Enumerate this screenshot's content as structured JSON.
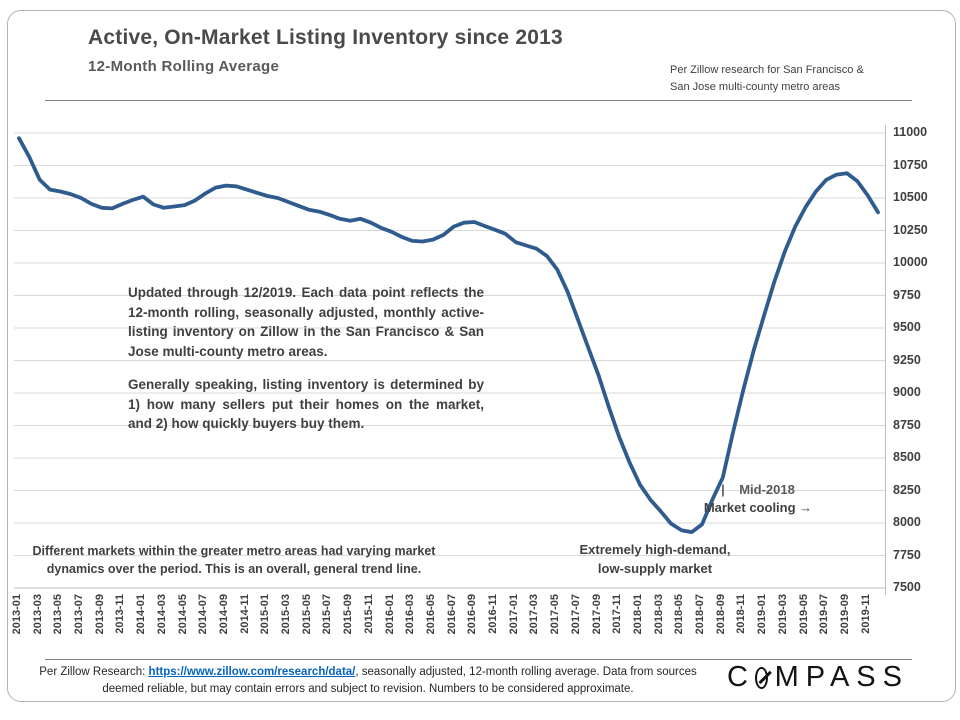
{
  "slide": {
    "title": "Active, On-Market Listing Inventory since 2013",
    "subtitle": "12-Month Rolling Average",
    "source_note_line1": "Per Zillow research for San Francisco &",
    "source_note_line2": "San Jose multi-county metro areas"
  },
  "annotations": {
    "center_paragraph1": "Updated through 12/2019. Each data point reflects the 12-month rolling, seasonally adjusted, monthly active-listing inventory on Zillow in the San Francisco & San Jose multi-county metro areas.",
    "center_paragraph2": "Generally speaking, listing inventory is determined by 1) how many sellers put their homes on the market, and 2) how quickly buyers buy them.",
    "bottom_left": "Different markets within the greater metro areas had varying market dynamics over the period. This is an overall, general trend line.",
    "high_demand_line1": "Extremely high-demand,",
    "high_demand_line2": "low-supply market",
    "mid2018_line1": "|    Mid-2018",
    "mid2018_line2": "Market cooling →"
  },
  "footer": {
    "prefix": "Per Zillow Research:  ",
    "link": "https://www.zillow.com/research/data/",
    "suffix": ",  seasonally adjusted, 12-month rolling average. Data from sources deemed reliable, but may contain errors and subject to revision. Numbers to be considered approximate.",
    "brand_c": "C",
    "brand_rest": "MPASS"
  },
  "colors": {
    "line": "#2F5B8E",
    "gridline": "#D9D9D9",
    "axis": "#BFBFBF",
    "link_blue": "#0563C1",
    "text_gray": "#404040"
  },
  "chart_data": {
    "type": "line",
    "title": "Active, On-Market Listing Inventory since 2013",
    "subtitle": "12-Month Rolling Average",
    "xlabel": "",
    "ylabel": "",
    "ylim": [
      7500,
      11000
    ],
    "y_ticks": [
      7500,
      7750,
      8000,
      8250,
      8500,
      8750,
      9000,
      9250,
      9500,
      9750,
      10000,
      10250,
      10500,
      10750,
      11000
    ],
    "grid": "horizontal",
    "legend": "none",
    "x": [
      "2013-01",
      "2013-02",
      "2013-03",
      "2013-04",
      "2013-05",
      "2013-06",
      "2013-07",
      "2013-08",
      "2013-09",
      "2013-10",
      "2013-11",
      "2013-12",
      "2014-01",
      "2014-02",
      "2014-03",
      "2014-04",
      "2014-05",
      "2014-06",
      "2014-07",
      "2014-08",
      "2014-09",
      "2014-10",
      "2014-11",
      "2014-12",
      "2015-01",
      "2015-02",
      "2015-03",
      "2015-04",
      "2015-05",
      "2015-06",
      "2015-07",
      "2015-08",
      "2015-09",
      "2015-10",
      "2015-11",
      "2015-12",
      "2016-01",
      "2016-02",
      "2016-03",
      "2016-04",
      "2016-05",
      "2016-06",
      "2016-07",
      "2016-08",
      "2016-09",
      "2016-10",
      "2016-11",
      "2016-12",
      "2017-01",
      "2017-02",
      "2017-03",
      "2017-04",
      "2017-05",
      "2017-06",
      "2017-07",
      "2017-08",
      "2017-09",
      "2017-10",
      "2017-11",
      "2017-12",
      "2018-01",
      "2018-02",
      "2018-03",
      "2018-04",
      "2018-05",
      "2018-06",
      "2018-07",
      "2018-08",
      "2018-09",
      "2018-10",
      "2018-11",
      "2018-12",
      "2019-01",
      "2019-02",
      "2019-03",
      "2019-04",
      "2019-05",
      "2019-06",
      "2019-07",
      "2019-08",
      "2019-09",
      "2019-10",
      "2019-11",
      "2019-12"
    ],
    "values": [
      10960,
      10815,
      10640,
      10565,
      10550,
      10530,
      10500,
      10455,
      10425,
      10420,
      10455,
      10485,
      10510,
      10450,
      10425,
      10435,
      10445,
      10480,
      10535,
      10580,
      10595,
      10590,
      10565,
      10540,
      10515,
      10500,
      10470,
      10440,
      10410,
      10395,
      10370,
      10340,
      10325,
      10340,
      10310,
      10270,
      10240,
      10200,
      10170,
      10165,
      10180,
      10215,
      10280,
      10310,
      10315,
      10285,
      10255,
      10225,
      10160,
      10135,
      10110,
      10055,
      9950,
      9780,
      9565,
      9350,
      9135,
      8890,
      8660,
      8465,
      8295,
      8180,
      8090,
      7995,
      7945,
      7930,
      7990,
      8180,
      8350,
      8700,
      9030,
      9330,
      9600,
      9860,
      10090,
      10280,
      10430,
      10550,
      10640,
      10680,
      10690,
      10630,
      10520,
      10390
    ],
    "x_tick_labels": [
      "2013-01",
      "2013-03",
      "2013-05",
      "2013-07",
      "2013-09",
      "2013-11",
      "2014-01",
      "2014-03",
      "2014-05",
      "2014-07",
      "2014-09",
      "2014-11",
      "2015-01",
      "2015-03",
      "2015-05",
      "2015-07",
      "2015-09",
      "2015-11",
      "2016-01",
      "2016-03",
      "2016-05",
      "2016-07",
      "2016-09",
      "2016-11",
      "2017-01",
      "2017-03",
      "2017-05",
      "2017-07",
      "2017-09",
      "2017-11",
      "2018-01",
      "2018-03",
      "2018-05",
      "2018-07",
      "2018-09",
      "2018-11",
      "2019-01",
      "2019-03",
      "2019-05",
      "2019-07",
      "2019-09",
      "2019-11"
    ]
  }
}
